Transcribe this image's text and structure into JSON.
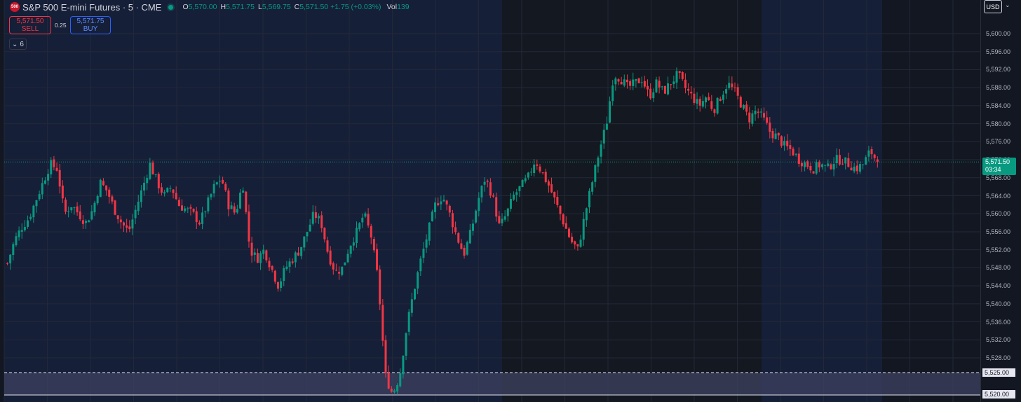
{
  "header": {
    "logo_text": "500",
    "symbol": "S&P 500 E-mini Futures · 5 · CME",
    "ohlc": {
      "o_label": "O",
      "o": "5,570.00",
      "h_label": "H",
      "h": "5,571.75",
      "l_label": "L",
      "l": "5,569.75",
      "c_label": "C",
      "c": "5,571.50",
      "change": "+1.75 (+0.03%)",
      "vol_label": "Vol",
      "vol": "139"
    }
  },
  "trade": {
    "sell_price": "5,571.50",
    "sell_label": "SELL",
    "spread": "0.25",
    "buy_price": "5,571.75",
    "buy_label": "BUY"
  },
  "indicators_toggle": {
    "count": "6"
  },
  "currency": "USD",
  "price_axis": {
    "ticks": [
      "5,600.00",
      "5,596.00",
      "5,592.00",
      "5,588.00",
      "5,584.00",
      "5,580.00",
      "5,576.00",
      "5,572.00",
      "5,568.00",
      "5,564.00",
      "5,560.00",
      "5,556.00",
      "5,552.00",
      "5,548.00",
      "5,544.00",
      "5,540.00",
      "5,536.00",
      "5,532.00",
      "5,528.00"
    ],
    "tick_values": [
      5600,
      5596,
      5592,
      5588,
      5584,
      5580,
      5576,
      5572,
      5568,
      5564,
      5560,
      5556,
      5552,
      5548,
      5544,
      5540,
      5536,
      5532,
      5528
    ],
    "last_price": "5,571.50",
    "last_price_value": 5571.5,
    "countdown": "03:34",
    "zone_upper": "5,525.00",
    "zone_upper_value": 5525.0,
    "zone_lower": "5,520.00",
    "zone_lower_value": 5520.0
  },
  "colors": {
    "up": "#089981",
    "down": "#f23645",
    "background": "#131722",
    "session_a": "#161f38",
    "session_b": "#141820",
    "zone_fill": "#3d4260",
    "accent": "#2962ff"
  },
  "chart_data": {
    "type": "candlestick",
    "title": "",
    "y_range": [
      5519,
      5604
    ],
    "anchors": [
      5549,
      5554,
      5557,
      5559,
      5563,
      5567,
      5571,
      5570,
      5560,
      5562,
      5560,
      5558,
      5561,
      5567,
      5565,
      5561,
      5558,
      5556,
      5561,
      5566,
      5571,
      5567,
      5564,
      5566,
      5562,
      5561,
      5560,
      5558,
      5562,
      5566,
      5568,
      5562,
      5560,
      5567,
      5552,
      5550,
      5552,
      5548,
      5544,
      5548,
      5550,
      5552,
      5556,
      5560,
      5558,
      5551,
      5547,
      5548,
      5553,
      5556,
      5560,
      5555,
      5545,
      5524,
      5520,
      5524,
      5535,
      5543,
      5550,
      5556,
      5562,
      5564,
      5560,
      5555,
      5551,
      5556,
      5563,
      5568,
      5564,
      5557,
      5560,
      5564,
      5566,
      5568,
      5572,
      5569,
      5566,
      5562,
      5558,
      5554,
      5552,
      5560,
      5567,
      5574,
      5580,
      5591,
      5590,
      5588,
      5589,
      5590,
      5586,
      5589,
      5587,
      5589,
      5591,
      5588,
      5586,
      5584,
      5586,
      5583,
      5586,
      5589,
      5587,
      5584,
      5581,
      5583,
      5581,
      5578,
      5577,
      5575,
      5574,
      5572,
      5571,
      5570,
      5571,
      5570,
      5572,
      5572,
      5571,
      5570,
      5571,
      5574,
      5571.5
    ],
    "direction_pattern": "mixed",
    "session_breaks": [
      "mid-session",
      "overnight",
      "next-session"
    ]
  }
}
